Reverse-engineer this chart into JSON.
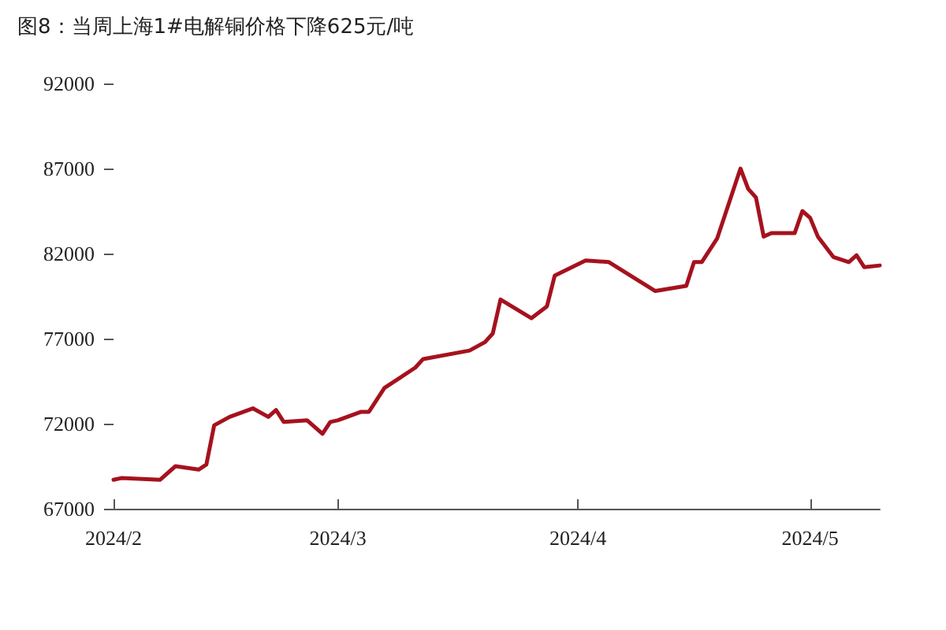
{
  "chart_data": {
    "type": "line",
    "title": "图8：当周上海1#电解铜价格下降625元/吨",
    "x": [
      "2024-02-01",
      "2024-02-02",
      "2024-02-07",
      "2024-02-09",
      "2024-02-12",
      "2024-02-13",
      "2024-02-14",
      "2024-02-16",
      "2024-02-19",
      "2024-02-21",
      "2024-02-22",
      "2024-02-23",
      "2024-02-26",
      "2024-02-28",
      "2024-02-29",
      "2024-03-01",
      "2024-03-04",
      "2024-03-05",
      "2024-03-07",
      "2024-03-11",
      "2024-03-12",
      "2024-03-18",
      "2024-03-20",
      "2024-03-21",
      "2024-03-22",
      "2024-03-26",
      "2024-03-28",
      "2024-03-29",
      "2024-04-02",
      "2024-04-05",
      "2024-04-11",
      "2024-04-15",
      "2024-04-16",
      "2024-04-17",
      "2024-04-19",
      "2024-04-22",
      "2024-04-23",
      "2024-04-24",
      "2024-04-25",
      "2024-04-26",
      "2024-04-29",
      "2024-04-30",
      "2024-05-01",
      "2024-05-02",
      "2024-05-04",
      "2024-05-06",
      "2024-05-07",
      "2024-05-08",
      "2024-05-10"
    ],
    "series": [
      {
        "color": "#a5121e",
        "values": [
          68700,
          68800,
          68700,
          69500,
          69300,
          69600,
          71900,
          72400,
          72900,
          72400,
          72800,
          72100,
          72200,
          71400,
          72100,
          72200,
          72700,
          72700,
          74100,
          75300,
          75800,
          76300,
          76800,
          77300,
          79300,
          78200,
          78900,
          80700,
          81600,
          81500,
          79800,
          80100,
          81500,
          81500,
          82900,
          87000,
          85800,
          85300,
          83000,
          83200,
          83200,
          84500,
          84100,
          83000,
          81800,
          81500,
          81900,
          81200,
          81300
        ]
      }
    ],
    "xlim": [
      "2024-02-01",
      "2024-05-10"
    ],
    "xticks": [
      {
        "value": "2024-02-01",
        "label": "2024/2"
      },
      {
        "value": "2024-03-01",
        "label": "2024/3"
      },
      {
        "value": "2024-04-01",
        "label": "2024/4"
      },
      {
        "value": "2024-05-01",
        "label": "2024/5"
      }
    ],
    "ylim": [
      67000,
      92000
    ],
    "yticks": [
      67000,
      72000,
      77000,
      82000,
      87000,
      92000
    ],
    "grid": false,
    "marker": "none",
    "line_style": "solid"
  }
}
